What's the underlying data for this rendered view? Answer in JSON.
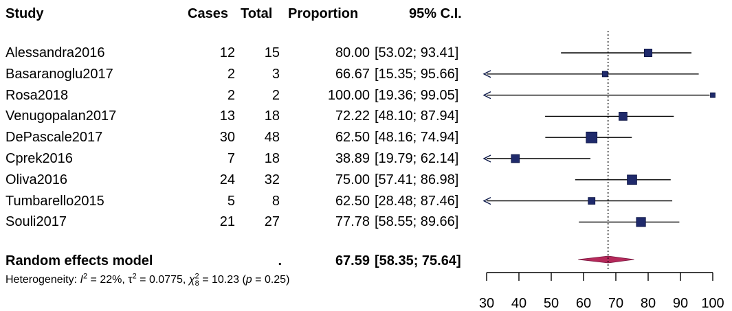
{
  "header": {
    "study": "Study",
    "cases": "Cases",
    "total": "Total",
    "proportion": "Proportion",
    "ci": "95% C.I."
  },
  "chart_data": {
    "type": "forest",
    "xlim": [
      30,
      100
    ],
    "xticks": [
      30,
      40,
      50,
      60,
      70,
      80,
      90,
      100
    ],
    "reference_line": 67.59,
    "studies": [
      {
        "name": "Alessandra2016",
        "cases": "12",
        "total": "15",
        "proportion": 80.0,
        "proportion_text": "80.00",
        "lower": 53.02,
        "upper": 93.41,
        "ci_text": "[53.02; 93.41]",
        "weight": 3
      },
      {
        "name": "Basaranoglu2017",
        "cases": "2",
        "total": "3",
        "proportion": 66.67,
        "proportion_text": "66.67",
        "lower": 15.35,
        "upper": 95.66,
        "ci_text": "[15.35; 95.66]",
        "weight": 1
      },
      {
        "name": "Rosa2018",
        "cases": "2",
        "total": "2",
        "proportion": 100.0,
        "proportion_text": "100.00",
        "lower": 19.36,
        "upper": 99.05,
        "ci_text": "[19.36; 99.05]",
        "weight": 0.5
      },
      {
        "name": "Venugopalan2017",
        "cases": "13",
        "total": "18",
        "proportion": 72.22,
        "proportion_text": "72.22",
        "lower": 48.1,
        "upper": 87.94,
        "ci_text": "[48.10; 87.94]",
        "weight": 3.5
      },
      {
        "name": "DePascale2017",
        "cases": "30",
        "total": "48",
        "proportion": 62.5,
        "proportion_text": "62.50",
        "lower": 48.16,
        "upper": 74.94,
        "ci_text": "[48.16; 74.94]",
        "weight": 8
      },
      {
        "name": "Cprek2016",
        "cases": "7",
        "total": "18",
        "proportion": 38.89,
        "proportion_text": "38.89",
        "lower": 19.79,
        "upper": 62.14,
        "ci_text": "[19.79; 62.14]",
        "weight": 3.5
      },
      {
        "name": "Oliva2016",
        "cases": "24",
        "total": "32",
        "proportion": 75.0,
        "proportion_text": "75.00",
        "lower": 57.41,
        "upper": 86.98,
        "ci_text": "[57.41; 86.98]",
        "weight": 5.5
      },
      {
        "name": "Tumbarello2015",
        "cases": "5",
        "total": "8",
        "proportion": 62.5,
        "proportion_text": "62.50",
        "lower": 28.48,
        "upper": 87.46,
        "ci_text": "[28.48; 87.46]",
        "weight": 2
      },
      {
        "name": "Souli2017",
        "cases": "21",
        "total": "27",
        "proportion": 77.78,
        "proportion_text": "77.78",
        "lower": 58.55,
        "upper": 89.66,
        "ci_text": "[58.55; 89.66]",
        "weight": 5
      }
    ],
    "summary": {
      "name": "Random effects model",
      "cases": ".",
      "proportion": 67.59,
      "proportion_text": "67.59",
      "lower": 58.35,
      "upper": 75.64,
      "ci_text": "[58.35; 75.64]"
    },
    "heterogeneity": {
      "prefix": "Heterogeneity: ",
      "i2": "= 22%, ",
      "tau2": " = 0.0775, ",
      "chi_sub": "8",
      "chi_value": " = 10.23 (",
      "p_value": " = 0.25)"
    },
    "colors": {
      "marker": "#1f2a6b",
      "line": "#000000",
      "diamond": "#b5295a",
      "arrow": "#0d1a4a"
    }
  }
}
